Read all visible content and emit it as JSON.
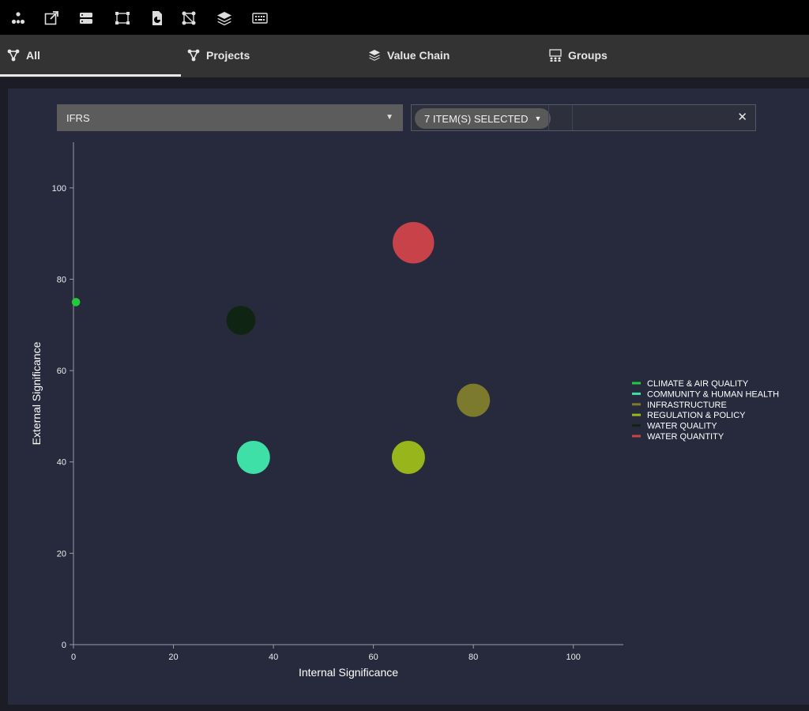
{
  "toolbar": {
    "icons": [
      "network-icon",
      "export-icon",
      "server-icon",
      "select-region-icon",
      "pie-file-icon",
      "graph-nodes-icon",
      "layers-icon",
      "keyboard-icon"
    ]
  },
  "tabs": [
    {
      "label": "All",
      "icon": "network-icon",
      "active": true
    },
    {
      "label": "Projects",
      "icon": "network-icon",
      "active": false
    },
    {
      "label": "Value Chain",
      "icon": "layers-icon",
      "active": false
    },
    {
      "label": "Groups",
      "icon": "group-icon",
      "active": false
    }
  ],
  "filters": {
    "framework": "IFRS",
    "selection_label": "7 ITEM(S) SELECTED"
  },
  "colors": {
    "background": "#272a3c",
    "tab_bar": "#333333"
  },
  "chart_data": {
    "type": "scatter",
    "xlabel": "Internal Significance",
    "ylabel": "External Significance",
    "xlim": [
      0,
      110
    ],
    "ylim": [
      0,
      110
    ],
    "xticks": [
      0,
      20,
      40,
      60,
      80,
      100
    ],
    "yticks": [
      0,
      20,
      40,
      60,
      80,
      100
    ],
    "legend_position": "right",
    "series": [
      {
        "name": "CLIMATE & AIR QUALITY",
        "color": "#22c93a",
        "points": [
          {
            "x": 0.5,
            "y": 75,
            "size": 1
          }
        ]
      },
      {
        "name": "COMMUNITY & HUMAN HEALTH",
        "color": "#3fe0a8",
        "points": [
          {
            "x": 36,
            "y": 41,
            "size": 4
          }
        ]
      },
      {
        "name": "INFRASTRUCTURE",
        "color": "#7c7a2c",
        "points": [
          {
            "x": 80,
            "y": 53.5,
            "size": 4
          }
        ]
      },
      {
        "name": "REGULATION & POLICY",
        "color": "#99b51c",
        "points": [
          {
            "x": 67,
            "y": 41,
            "size": 4
          }
        ]
      },
      {
        "name": "WATER QUALITY",
        "color": "#0f2413",
        "points": [
          {
            "x": 33.5,
            "y": 71,
            "size": 3.5
          }
        ]
      },
      {
        "name": "WATER QUANTITY",
        "color": "#c8424a",
        "points": [
          {
            "x": 68,
            "y": 88,
            "size": 5
          }
        ]
      }
    ]
  }
}
